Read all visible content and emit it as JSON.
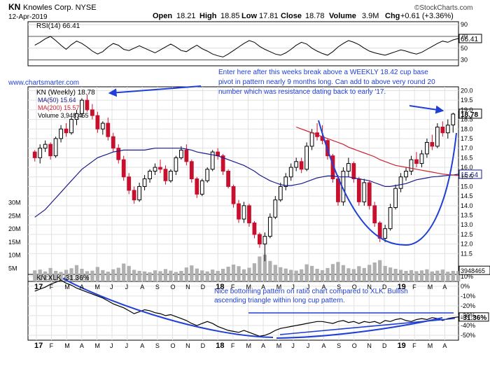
{
  "header": {
    "symbol": "KN",
    "company": "Knowles Corp. NYSE",
    "date": "12-Apr-2019",
    "watermark": "©StockCharts.com",
    "open_label": "Open",
    "open": "18.21",
    "high_label": "High",
    "high": "18.85",
    "low_label": "Low",
    "low": "17.81",
    "close_label": "Close",
    "close": "18.78",
    "volume_label": "Volume",
    "volume": "3.9M",
    "chg_label": "Chg",
    "chg": "+0.61 (+3.36%)"
  },
  "website": "www.chartsmarter.com",
  "annotations": {
    "top": "Enter here after this weeks break above a WEEKLY 18.42 cup base pivot in pattern nearly 9 months long. Can add to above very round 20 number which was resistance dating back to early '17.",
    "bottom": "Nice bottoming pattern on ratio chart compared to XLK. Bullish ascending triangle within long cup pattern."
  },
  "colors": {
    "up": "#000000",
    "down": "#c8102e",
    "ma50": "#1a1a8c",
    "ma200": "#cc2233",
    "annotation": "#1f3fd6",
    "grid": "#d8d8d8",
    "volume": "#9a9a9a"
  },
  "chart_data": [
    {
      "type": "line",
      "panel": "rsi",
      "label": "RSI(14) 66.41",
      "ylim": [
        20,
        95
      ],
      "y_ticks": [
        30,
        50,
        70,
        90
      ],
      "reference_lines": [
        30,
        70
      ],
      "last_value": "66.41",
      "values": [
        55,
        60,
        66,
        70,
        63,
        55,
        48,
        56,
        62,
        58,
        52,
        45,
        40,
        44,
        52,
        58,
        55,
        48,
        46,
        50,
        54,
        50,
        46,
        42,
        47,
        52,
        57,
        52,
        46,
        44,
        50,
        55,
        49,
        45,
        40,
        37,
        35,
        40,
        46,
        52,
        58,
        63,
        60,
        53,
        48,
        44,
        40,
        38,
        42,
        48,
        55,
        60,
        57,
        50,
        45,
        41,
        38,
        44,
        52,
        58,
        63,
        60,
        56,
        50,
        45,
        42,
        40,
        38,
        41,
        44,
        47,
        45,
        42,
        40,
        43,
        48,
        53,
        58,
        62,
        60,
        64,
        66.41
      ]
    },
    {
      "type": "candlestick",
      "panel": "price",
      "ticker_label": "KN (Weekly) 18.78",
      "y_ticks": [
        11.5,
        12.0,
        12.5,
        13.0,
        13.5,
        14.0,
        14.5,
        15.0,
        15.5,
        16.0,
        16.5,
        17.0,
        17.5,
        18.0,
        18.5,
        19.0,
        19.5,
        20.0
      ],
      "ylim": [
        11.0,
        20.2
      ],
      "last_price_tag": "18.78",
      "ma50_tag": "15.64",
      "ohlc": [
        [
          16.8,
          16.9,
          16.3,
          16.5
        ],
        [
          16.5,
          17.2,
          16.2,
          17.0
        ],
        [
          17.0,
          17.4,
          16.8,
          17.2
        ],
        [
          17.2,
          17.3,
          16.4,
          16.6
        ],
        [
          16.6,
          17.6,
          16.5,
          17.5
        ],
        [
          17.5,
          18.2,
          17.3,
          18.0
        ],
        [
          18.0,
          18.3,
          17.6,
          17.8
        ],
        [
          17.8,
          18.6,
          17.7,
          18.5
        ],
        [
          18.5,
          19.0,
          18.2,
          18.8
        ],
        [
          18.8,
          19.6,
          18.6,
          19.5
        ],
        [
          19.5,
          19.8,
          18.9,
          19.0
        ],
        [
          19.0,
          19.3,
          18.5,
          18.7
        ],
        [
          18.7,
          18.9,
          17.8,
          18.0
        ],
        [
          18.0,
          18.4,
          17.7,
          18.3
        ],
        [
          18.3,
          18.6,
          17.4,
          17.6
        ],
        [
          17.6,
          17.8,
          16.8,
          17.0
        ],
        [
          17.0,
          17.2,
          16.2,
          16.4
        ],
        [
          16.4,
          16.6,
          15.3,
          15.5
        ],
        [
          15.5,
          15.7,
          14.6,
          14.8
        ],
        [
          14.8,
          15.0,
          14.1,
          14.3
        ],
        [
          14.3,
          15.2,
          14.2,
          15.0
        ],
        [
          15.0,
          15.6,
          14.8,
          15.4
        ],
        [
          15.4,
          15.9,
          15.2,
          15.8
        ],
        [
          15.8,
          16.2,
          15.6,
          16.0
        ],
        [
          16.0,
          16.4,
          15.7,
          15.9
        ],
        [
          15.9,
          16.1,
          15.1,
          15.3
        ],
        [
          15.3,
          15.9,
          15.2,
          15.8
        ],
        [
          15.8,
          16.6,
          15.6,
          16.5
        ],
        [
          16.5,
          17.1,
          16.4,
          16.9
        ],
        [
          16.9,
          17.2,
          16.1,
          16.3
        ],
        [
          16.3,
          16.4,
          15.2,
          15.4
        ],
        [
          15.4,
          15.5,
          14.4,
          14.6
        ],
        [
          14.6,
          15.4,
          14.5,
          15.3
        ],
        [
          15.3,
          16.0,
          15.2,
          15.9
        ],
        [
          15.9,
          16.9,
          15.8,
          16.8
        ],
        [
          16.8,
          17.0,
          16.4,
          16.6
        ],
        [
          16.6,
          16.7,
          15.6,
          15.8
        ],
        [
          15.8,
          15.9,
          14.9,
          15.0
        ],
        [
          15.0,
          15.1,
          13.9,
          14.1
        ],
        [
          14.1,
          14.3,
          13.1,
          13.3
        ],
        [
          13.3,
          14.2,
          13.1,
          14.0
        ],
        [
          14.0,
          14.1,
          12.9,
          13.1
        ],
        [
          13.1,
          13.2,
          12.3,
          12.5
        ],
        [
          12.5,
          12.6,
          11.8,
          12.0
        ],
        [
          12.0,
          12.6,
          11.1,
          12.4
        ],
        [
          12.4,
          13.6,
          12.3,
          13.4
        ],
        [
          13.4,
          14.5,
          13.3,
          14.3
        ],
        [
          14.3,
          15.2,
          14.2,
          15.0
        ],
        [
          15.0,
          15.7,
          14.8,
          15.5
        ],
        [
          15.5,
          16.2,
          15.3,
          16.0
        ],
        [
          16.0,
          16.5,
          15.8,
          16.3
        ],
        [
          16.3,
          16.5,
          15.7,
          15.9
        ],
        [
          15.9,
          17.3,
          15.8,
          17.1
        ],
        [
          17.1,
          18.0,
          16.9,
          17.8
        ],
        [
          17.8,
          18.3,
          17.4,
          17.6
        ],
        [
          17.6,
          18.2,
          17.2,
          17.4
        ],
        [
          17.4,
          17.5,
          16.4,
          16.6
        ],
        [
          16.6,
          16.7,
          15.2,
          15.4
        ],
        [
          15.4,
          15.6,
          14.0,
          14.2
        ],
        [
          14.2,
          16.0,
          14.0,
          15.8
        ],
        [
          15.8,
          16.5,
          15.5,
          16.2
        ],
        [
          16.2,
          16.3,
          15.2,
          15.4
        ],
        [
          15.4,
          15.5,
          14.0,
          14.2
        ],
        [
          14.2,
          15.4,
          14.0,
          15.2
        ],
        [
          15.2,
          15.3,
          13.8,
          14.0
        ],
        [
          14.0,
          14.2,
          12.9,
          13.1
        ],
        [
          13.1,
          13.2,
          12.1,
          12.3
        ],
        [
          12.3,
          13.0,
          12.1,
          12.8
        ],
        [
          12.8,
          14.1,
          12.7,
          13.9
        ],
        [
          13.9,
          15.1,
          13.8,
          14.9
        ],
        [
          14.9,
          15.7,
          14.7,
          15.5
        ],
        [
          15.5,
          16.0,
          15.3,
          15.8
        ],
        [
          15.8,
          16.6,
          15.6,
          16.4
        ],
        [
          16.4,
          16.8,
          16.0,
          16.2
        ],
        [
          16.2,
          16.9,
          16.0,
          16.7
        ],
        [
          16.7,
          17.5,
          16.5,
          17.3
        ],
        [
          17.3,
          17.7,
          16.9,
          17.1
        ],
        [
          17.1,
          18.3,
          17.0,
          18.1
        ],
        [
          18.1,
          18.4,
          17.6,
          17.8
        ],
        [
          17.8,
          18.5,
          17.5,
          18.2
        ],
        [
          18.21,
          18.85,
          17.81,
          18.78
        ]
      ],
      "ma50": {
        "label": "MA(50) 15.64",
        "values": [
          13.4,
          13.6,
          13.8,
          14.1,
          14.4,
          14.7,
          15.0,
          15.3,
          15.6,
          15.9,
          16.1,
          16.3,
          16.5,
          16.6,
          16.7,
          16.8,
          16.85,
          16.9,
          16.9,
          16.9,
          16.9,
          16.9,
          16.95,
          17.0,
          17.0,
          17.0,
          17.0,
          17.0,
          17.0,
          16.95,
          16.9,
          16.8,
          16.75,
          16.7,
          16.65,
          16.6,
          16.5,
          16.4,
          16.3,
          16.2,
          16.1,
          15.95,
          15.8,
          15.6,
          15.45,
          15.3,
          15.2,
          15.1,
          15.05,
          15.05,
          15.1,
          15.15,
          15.25,
          15.35,
          15.45,
          15.5,
          15.55,
          15.55,
          15.5,
          15.5,
          15.5,
          15.45,
          15.4,
          15.35,
          15.3,
          15.2,
          15.1,
          15.0,
          15.0,
          15.05,
          15.1,
          15.15,
          15.25,
          15.35,
          15.4,
          15.45,
          15.5,
          15.52,
          15.55,
          15.58,
          15.6,
          15.64
        ]
      },
      "ma200": {
        "label": "MA(200) 15.57",
        "values": [
          null,
          null,
          null,
          null,
          null,
          null,
          null,
          null,
          null,
          null,
          null,
          null,
          null,
          null,
          null,
          null,
          null,
          null,
          null,
          null,
          null,
          null,
          null,
          null,
          null,
          null,
          null,
          null,
          null,
          null,
          null,
          null,
          null,
          null,
          null,
          null,
          null,
          null,
          null,
          null,
          null,
          null,
          null,
          null,
          null,
          null,
          null,
          null,
          null,
          null,
          18.1,
          18.0,
          17.9,
          17.8,
          17.7,
          17.6,
          17.5,
          17.4,
          17.3,
          17.2,
          17.05,
          16.95,
          16.85,
          16.75,
          16.65,
          16.55,
          16.4,
          16.3,
          16.2,
          16.1,
          16.05,
          16.0,
          15.95,
          15.9,
          15.85,
          15.8,
          15.75,
          15.7,
          15.65,
          15.62,
          15.6,
          15.57
        ]
      },
      "volume": {
        "label": "Volume 3,948,465",
        "y_ticks_label": [
          "5M",
          "10M",
          "15M",
          "20M",
          "25M",
          "30M"
        ],
        "ylim_m": [
          0,
          32
        ],
        "last_tag": "3948465",
        "values_m": [
          4.2,
          4.5,
          3.8,
          5.1,
          4.0,
          3.6,
          4.4,
          5.0,
          6.2,
          4.8,
          3.9,
          4.1,
          5.5,
          4.3,
          3.7,
          4.6,
          5.2,
          6.8,
          5.9,
          4.4,
          4.0,
          3.8,
          3.5,
          4.2,
          3.9,
          4.7,
          4.1,
          3.6,
          4.0,
          5.3,
          6.1,
          4.9,
          4.2,
          3.8,
          4.5,
          4.0,
          4.8,
          5.6,
          6.4,
          5.8,
          4.6,
          5.2,
          6.9,
          9.5,
          10.2,
          7.8,
          6.3,
          5.4,
          4.9,
          4.4,
          4.1,
          4.6,
          6.5,
          5.9,
          4.8,
          4.3,
          5.1,
          6.6,
          7.4,
          6.2,
          5.0,
          4.7,
          5.8,
          5.1,
          6.3,
          7.2,
          8.1,
          5.9,
          5.3,
          4.8,
          4.4,
          4.0,
          4.3,
          3.9,
          4.2,
          4.6,
          3.8,
          4.1,
          4.5,
          3.7,
          4.0,
          3.95
        ]
      }
    },
    {
      "type": "line",
      "panel": "ratio",
      "label": "KN:XLK -31.36%",
      "y_ticks": [
        "10%",
        "0%",
        "-10%",
        "-20%",
        "-30%",
        "-40%",
        "-50%"
      ],
      "ylim": [
        -55,
        12
      ],
      "last_value": "-31.36%",
      "values": [
        -5,
        -3,
        -1,
        2,
        4,
        6,
        3,
        1,
        -2,
        -4,
        -6,
        -8,
        -10,
        -12,
        -15,
        -18,
        -20,
        -22,
        -25,
        -28,
        -26,
        -24,
        -25,
        -27,
        -28,
        -30,
        -29,
        -31,
        -33,
        -35,
        -38,
        -40,
        -38,
        -36,
        -38,
        -41,
        -43,
        -45,
        -46,
        -47,
        -45,
        -47,
        -49,
        -51,
        -50,
        -48,
        -45,
        -43,
        -42,
        -41,
        -40,
        -39,
        -38,
        -37,
        -36,
        -36,
        -37,
        -38,
        -36,
        -35,
        -37,
        -36,
        -38,
        -36,
        -37,
        -36,
        -38,
        -35,
        -36,
        -34,
        -33,
        -35,
        -36,
        -34,
        -33,
        -34,
        -32,
        -33,
        -35,
        -33,
        -32,
        -31.36
      ]
    }
  ],
  "x_axis": {
    "labels": [
      "17",
      "F",
      "M",
      "A",
      "M",
      "J",
      "J",
      "A",
      "S",
      "O",
      "N",
      "D",
      "18",
      "F",
      "M",
      "A",
      "M",
      "J",
      "J",
      "A",
      "S",
      "O",
      "N",
      "D",
      "19",
      "F",
      "M",
      "A"
    ]
  }
}
